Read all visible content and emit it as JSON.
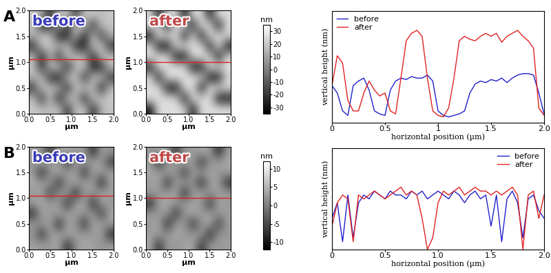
{
  "chart_data": [
    {
      "type": "heatmap",
      "panel_label": "A",
      "title": "before",
      "xlabel": "µm",
      "ylabel": "µm",
      "xlim": [
        0,
        2
      ],
      "ylim": [
        0,
        2
      ],
      "xticks": [
        {
          "value": 0,
          "label": "0.0"
        },
        0.5,
        {
          "value": 1,
          "label": "1.0"
        },
        1.5,
        {
          "value": 2,
          "label": "2.0"
        }
      ],
      "yticks": [
        {
          "value": 0,
          "label": "0.0"
        },
        0.5,
        {
          "value": 1,
          "label": "1.0"
        },
        1.5,
        {
          "value": 2,
          "label": "2.0"
        }
      ],
      "profile_y": 1.05,
      "color": "#e02020",
      "cells": [
        [
          20,
          15,
          -25,
          18,
          20,
          -20,
          18,
          22,
          15,
          20
        ],
        [
          18,
          -28,
          -25,
          15,
          -22,
          20,
          18,
          -25,
          20,
          18
        ],
        [
          15,
          20,
          18,
          -28,
          -25,
          18,
          -28,
          20,
          -22,
          15
        ],
        [
          -25,
          18,
          20,
          15,
          18,
          -25,
          -28,
          18,
          20,
          -25
        ],
        [
          18,
          -28,
          15,
          -25,
          20,
          18,
          15,
          -25,
          18,
          20
        ],
        [
          20,
          -25,
          18,
          20,
          -28,
          15,
          20,
          -28,
          -25,
          18
        ],
        [
          15,
          18,
          -25,
          -28,
          18,
          20,
          -25,
          18,
          20,
          -22
        ],
        [
          -22,
          20,
          18,
          15,
          -25,
          18,
          20,
          15,
          -28,
          18
        ],
        [
          18,
          -25,
          20,
          -28,
          18,
          15,
          -25,
          20,
          18,
          20
        ],
        [
          20,
          18,
          15,
          20,
          -22,
          18,
          20,
          -25,
          15,
          18
        ]
      ]
    },
    {
      "type": "heatmap",
      "title": "after",
      "xlabel": "µm",
      "ylabel": "µm",
      "xlim": [
        0,
        2
      ],
      "ylim": [
        0,
        2
      ],
      "xticks": [
        {
          "value": 0,
          "label": "0.0"
        },
        0.5,
        {
          "value": 1,
          "label": "1.0"
        },
        1.5,
        {
          "value": 2,
          "label": "2.0"
        }
      ],
      "yticks": [
        {
          "value": 0,
          "label": "0.0"
        },
        0.5,
        {
          "value": 1,
          "label": "1.0"
        },
        1.5,
        {
          "value": 2,
          "label": "2.0"
        }
      ],
      "profile_y": 1.0,
      "color": "#e02020",
      "colorbar": {
        "label": "nm",
        "range": [
          -35,
          35
        ],
        "ticks": [
          30,
          20,
          10,
          0,
          -10,
          -20,
          -30
        ]
      },
      "cells": [
        [
          25,
          -30,
          28,
          24,
          -32,
          26,
          25,
          -30,
          27,
          25
        ],
        [
          26,
          24,
          -31,
          27,
          25,
          -30,
          28,
          24,
          -32,
          26
        ],
        [
          -32,
          27,
          25,
          26,
          -30,
          27,
          -31,
          26,
          25,
          24
        ],
        [
          25,
          -30,
          -32,
          24,
          27,
          25,
          26,
          -30,
          28,
          -31
        ],
        [
          27,
          25,
          26,
          -31,
          -30,
          24,
          27,
          25,
          -32,
          26
        ],
        [
          -30,
          26,
          24,
          27,
          25,
          -32,
          -30,
          26,
          25,
          27
        ],
        [
          26,
          -31,
          27,
          25,
          26,
          27,
          25,
          -31,
          -30,
          24
        ],
        [
          24,
          27,
          -30,
          -32,
          25,
          26,
          -31,
          27,
          25,
          26
        ],
        [
          27,
          25,
          26,
          24,
          -30,
          27,
          25,
          26,
          -32,
          -30
        ],
        [
          -31,
          26,
          25,
          27,
          24,
          -30,
          26,
          25,
          27,
          25
        ]
      ]
    },
    {
      "type": "line",
      "xlabel": "horizontal position (µm)",
      "ylabel": "vertical height (nm)",
      "xlim": [
        0,
        2
      ],
      "ylim": [
        0,
        75
      ],
      "xticks": [
        0,
        0.5,
        1,
        1.5,
        {
          "value": 2,
          "label": "2.0"
        }
      ],
      "yticks": [],
      "tick_labels": "x",
      "legend": "upper left",
      "x": [
        0,
        0.05,
        0.1,
        0.15,
        0.2,
        0.25,
        0.3,
        0.35,
        0.4,
        0.45,
        0.5,
        0.55,
        0.6,
        0.65,
        0.7,
        0.75,
        0.8,
        0.85,
        0.9,
        0.95,
        1.0,
        1.05,
        1.1,
        1.15,
        1.2,
        1.25,
        1.3,
        1.35,
        1.4,
        1.45,
        1.5,
        1.55,
        1.6,
        1.65,
        1.7,
        1.75,
        1.8,
        1.85,
        1.9,
        1.95,
        2.0
      ],
      "series": [
        {
          "name": "before",
          "color": "#1f1fcc",
          "values": [
            25,
            20,
            8,
            5,
            25,
            28,
            30,
            22,
            8,
            6,
            5,
            22,
            28,
            30,
            29,
            31,
            30,
            30,
            32,
            28,
            8,
            5,
            4,
            5,
            6,
            8,
            20,
            26,
            28,
            27,
            29,
            28,
            30,
            27,
            30,
            32,
            33,
            33,
            32,
            20,
            6
          ]
        },
        {
          "name": "after",
          "color": "#e02020",
          "values": [
            25,
            45,
            40,
            15,
            8,
            8,
            20,
            28,
            22,
            18,
            20,
            8,
            6,
            30,
            55,
            60,
            62,
            58,
            30,
            8,
            5,
            4,
            10,
            30,
            55,
            58,
            56,
            55,
            58,
            60,
            58,
            60,
            54,
            58,
            60,
            62,
            58,
            55,
            50,
            10,
            5
          ]
        }
      ]
    },
    {
      "type": "heatmap",
      "panel_label": "B",
      "title": "before",
      "xlabel": "µm",
      "ylabel": "µm",
      "xlim": [
        0,
        2
      ],
      "ylim": [
        0,
        2
      ],
      "xticks": [
        {
          "value": 0,
          "label": "0.0"
        },
        0.5,
        {
          "value": 1,
          "label": "1.0"
        },
        1.5,
        {
          "value": 2,
          "label": "2.0"
        }
      ],
      "yticks": [
        {
          "value": 0,
          "label": "0.0"
        },
        0.5,
        {
          "value": 1,
          "label": "1.0"
        },
        1.5,
        {
          "value": 2,
          "label": "2.0"
        }
      ],
      "profile_y": 1.05,
      "color": "#e02020",
      "cells": [
        [
          3,
          2,
          -8,
          3,
          4,
          2,
          3,
          -9,
          3,
          2
        ],
        [
          2,
          4,
          3,
          3,
          -8,
          3,
          2,
          4,
          3,
          -7
        ],
        [
          3,
          -9,
          2,
          4,
          3,
          3,
          -8,
          3,
          2,
          4
        ],
        [
          4,
          3,
          3,
          -8,
          2,
          4,
          3,
          3,
          -9,
          3
        ],
        [
          2,
          3,
          -7,
          3,
          3,
          -9,
          3,
          2,
          4,
          3
        ],
        [
          3,
          4,
          3,
          2,
          -8,
          3,
          4,
          -9,
          3,
          2
        ],
        [
          -8,
          3,
          2,
          4,
          3,
          3,
          2,
          3,
          -7,
          4
        ],
        [
          3,
          2,
          4,
          -9,
          3,
          2,
          -8,
          4,
          3,
          3
        ],
        [
          2,
          -8,
          3,
          3,
          4,
          3,
          3,
          2,
          3,
          -9
        ],
        [
          3,
          3,
          2,
          4,
          -8,
          2,
          4,
          3,
          2,
          3
        ]
      ]
    },
    {
      "type": "heatmap",
      "title": "after",
      "xlabel": "µm",
      "ylabel": "µm",
      "xlim": [
        0,
        2
      ],
      "ylim": [
        0,
        2
      ],
      "xticks": [
        {
          "value": 0,
          "label": "0.0"
        },
        0.5,
        {
          "value": 1,
          "label": "1.0"
        },
        1.5,
        {
          "value": 2,
          "label": "2.0"
        }
      ],
      "yticks": [
        {
          "value": 0,
          "label": "0.0"
        },
        0.5,
        {
          "value": 1,
          "label": "1.0"
        },
        1.5,
        {
          "value": 2,
          "label": "2.0"
        }
      ],
      "profile_y": 1.0,
      "color": "#e02020",
      "colorbar": {
        "label": "nm",
        "range": [
          -12,
          12
        ],
        "ticks": [
          10,
          5,
          0,
          -5,
          -10
        ]
      },
      "cells": [
        [
          2,
          3,
          3,
          -8,
          3,
          2,
          4,
          3,
          -9,
          3
        ],
        [
          3,
          -9,
          2,
          3,
          4,
          3,
          -8,
          2,
          3,
          4
        ],
        [
          4,
          3,
          3,
          2,
          -7,
          3,
          3,
          4,
          2,
          3
        ],
        [
          2,
          4,
          -8,
          3,
          3,
          2,
          -9,
          3,
          3,
          -8
        ],
        [
          3,
          2,
          3,
          4,
          -9,
          3,
          4,
          2,
          3,
          3
        ],
        [
          -9,
          3,
          4,
          2,
          3,
          3,
          2,
          -8,
          4,
          2
        ],
        [
          3,
          2,
          3,
          -8,
          2,
          4,
          3,
          3,
          2,
          3
        ],
        [
          2,
          4,
          -9,
          3,
          3,
          -8,
          2,
          4,
          -7,
          3
        ],
        [
          3,
          3,
          2,
          4,
          2,
          3,
          3,
          -9,
          3,
          2
        ],
        [
          4,
          -8,
          3,
          2,
          3,
          4,
          -8,
          3,
          2,
          3
        ]
      ]
    },
    {
      "type": "line",
      "xlabel": "horizontal position (µm)",
      "ylabel": "vertical height (nm)",
      "xlim": [
        0,
        2
      ],
      "ylim": [
        0,
        26
      ],
      "xticks": [
        0,
        0.5,
        {
          "value": 1,
          "label": "1.0"
        },
        1.5,
        {
          "value": 2,
          "label": "2.0"
        }
      ],
      "yticks": [],
      "tick_labels": "x",
      "legend": "upper right",
      "x": [
        0,
        0.05,
        0.1,
        0.15,
        0.2,
        0.25,
        0.3,
        0.35,
        0.4,
        0.45,
        0.5,
        0.55,
        0.6,
        0.65,
        0.7,
        0.75,
        0.8,
        0.85,
        0.9,
        0.95,
        1.0,
        1.05,
        1.1,
        1.15,
        1.2,
        1.25,
        1.3,
        1.35,
        1.4,
        1.45,
        1.5,
        1.55,
        1.6,
        1.65,
        1.7,
        1.75,
        1.8,
        1.85,
        1.9,
        1.95,
        2.0
      ],
      "series": [
        {
          "name": "before",
          "color": "#1f1fcc",
          "values": [
            8,
            12,
            2,
            14,
            3,
            12,
            14,
            13,
            15,
            14,
            13,
            15,
            14,
            14,
            13,
            15,
            14,
            15,
            13,
            14,
            15,
            14,
            13,
            15,
            14,
            12,
            14,
            15,
            13,
            14,
            6,
            14,
            2,
            13,
            15,
            12,
            3,
            13,
            14,
            10,
            8
          ]
        },
        {
          "name": "after",
          "color": "#e02020",
          "values": [
            6,
            12,
            14,
            13,
            2,
            14,
            13,
            14,
            15,
            14,
            13,
            14,
            15,
            16,
            14,
            15,
            14,
            8,
            0,
            3,
            12,
            15,
            14,
            15,
            16,
            14,
            15,
            16,
            15,
            15,
            14,
            15,
            14,
            15,
            16,
            14,
            0,
            14,
            15,
            8,
            14
          ]
        }
      ]
    }
  ]
}
